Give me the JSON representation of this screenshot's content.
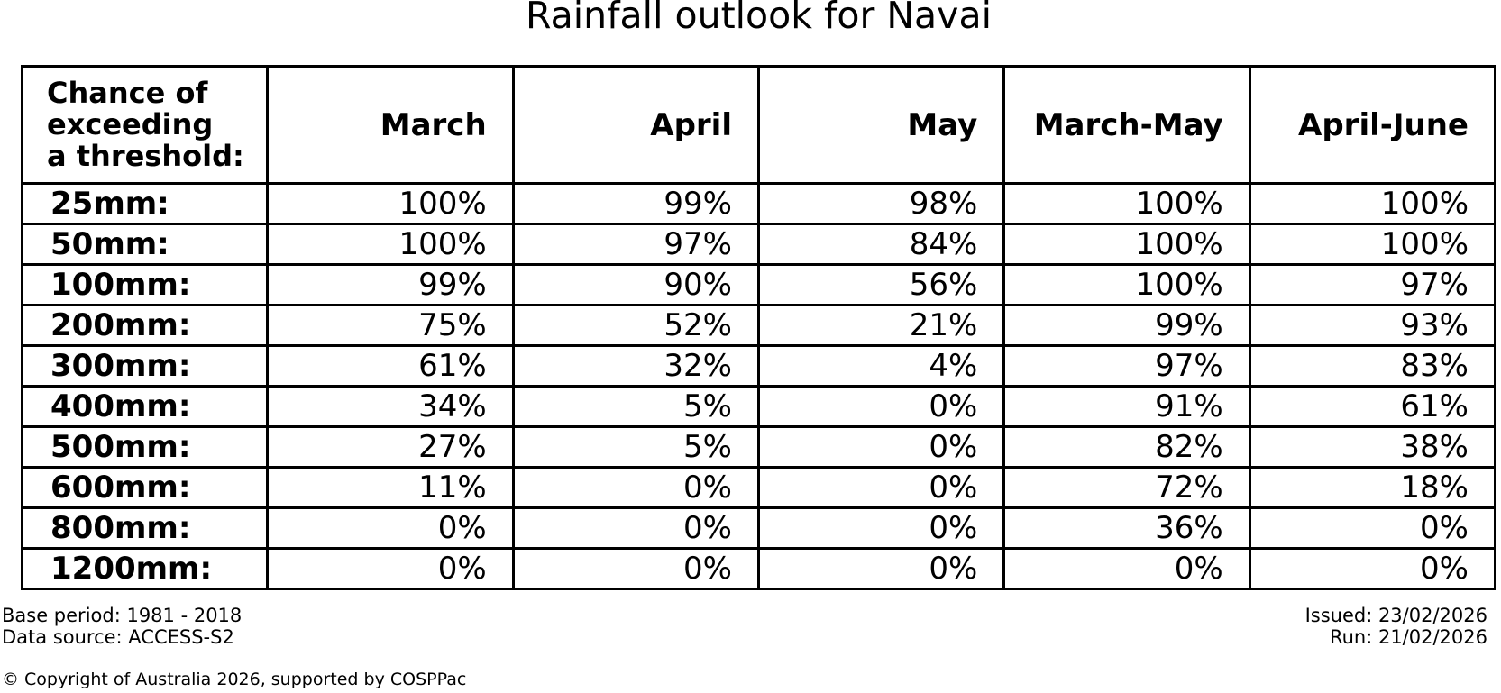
{
  "title": "Rainfall outlook for Navai",
  "chart_data": {
    "type": "table",
    "title": "Rainfall outlook for Navai",
    "corner_header": "Chance of\nexceeding\na threshold:",
    "columns": [
      "March",
      "April",
      "May",
      "March-May",
      "April-June"
    ],
    "rows": [
      {
        "label": "25mm:",
        "values": [
          "100%",
          "99%",
          "98%",
          "100%",
          "100%"
        ]
      },
      {
        "label": "50mm:",
        "values": [
          "100%",
          "97%",
          "84%",
          "100%",
          "100%"
        ]
      },
      {
        "label": "100mm:",
        "values": [
          "99%",
          "90%",
          "56%",
          "100%",
          "97%"
        ]
      },
      {
        "label": "200mm:",
        "values": [
          "75%",
          "52%",
          "21%",
          "99%",
          "93%"
        ]
      },
      {
        "label": "300mm:",
        "values": [
          "61%",
          "32%",
          "4%",
          "97%",
          "83%"
        ]
      },
      {
        "label": "400mm:",
        "values": [
          "34%",
          "5%",
          "0%",
          "91%",
          "61%"
        ]
      },
      {
        "label": "500mm:",
        "values": [
          "27%",
          "5%",
          "0%",
          "82%",
          "38%"
        ]
      },
      {
        "label": "600mm:",
        "values": [
          "11%",
          "0%",
          "0%",
          "72%",
          "18%"
        ]
      },
      {
        "label": "800mm:",
        "values": [
          "0%",
          "0%",
          "0%",
          "36%",
          "0%"
        ]
      },
      {
        "label": "1200mm:",
        "values": [
          "0%",
          "0%",
          "0%",
          "0%",
          "0%"
        ]
      }
    ],
    "value_unit": "%",
    "grid": true,
    "layout": {
      "header_alignment": "right",
      "value_alignment": "right",
      "label_alignment": "left"
    }
  },
  "footer": {
    "base_period": "Base period: 1981 - 2018",
    "data_source": "Data source: ACCESS-S2",
    "issued": "Issued: 23/02/2026",
    "run": "Run: 21/02/2026",
    "copyright": "© Copyright of Australia 2026, supported by COSPPac"
  },
  "colors": {
    "background": "#ffffff",
    "text": "#000000",
    "border": "#000000"
  }
}
